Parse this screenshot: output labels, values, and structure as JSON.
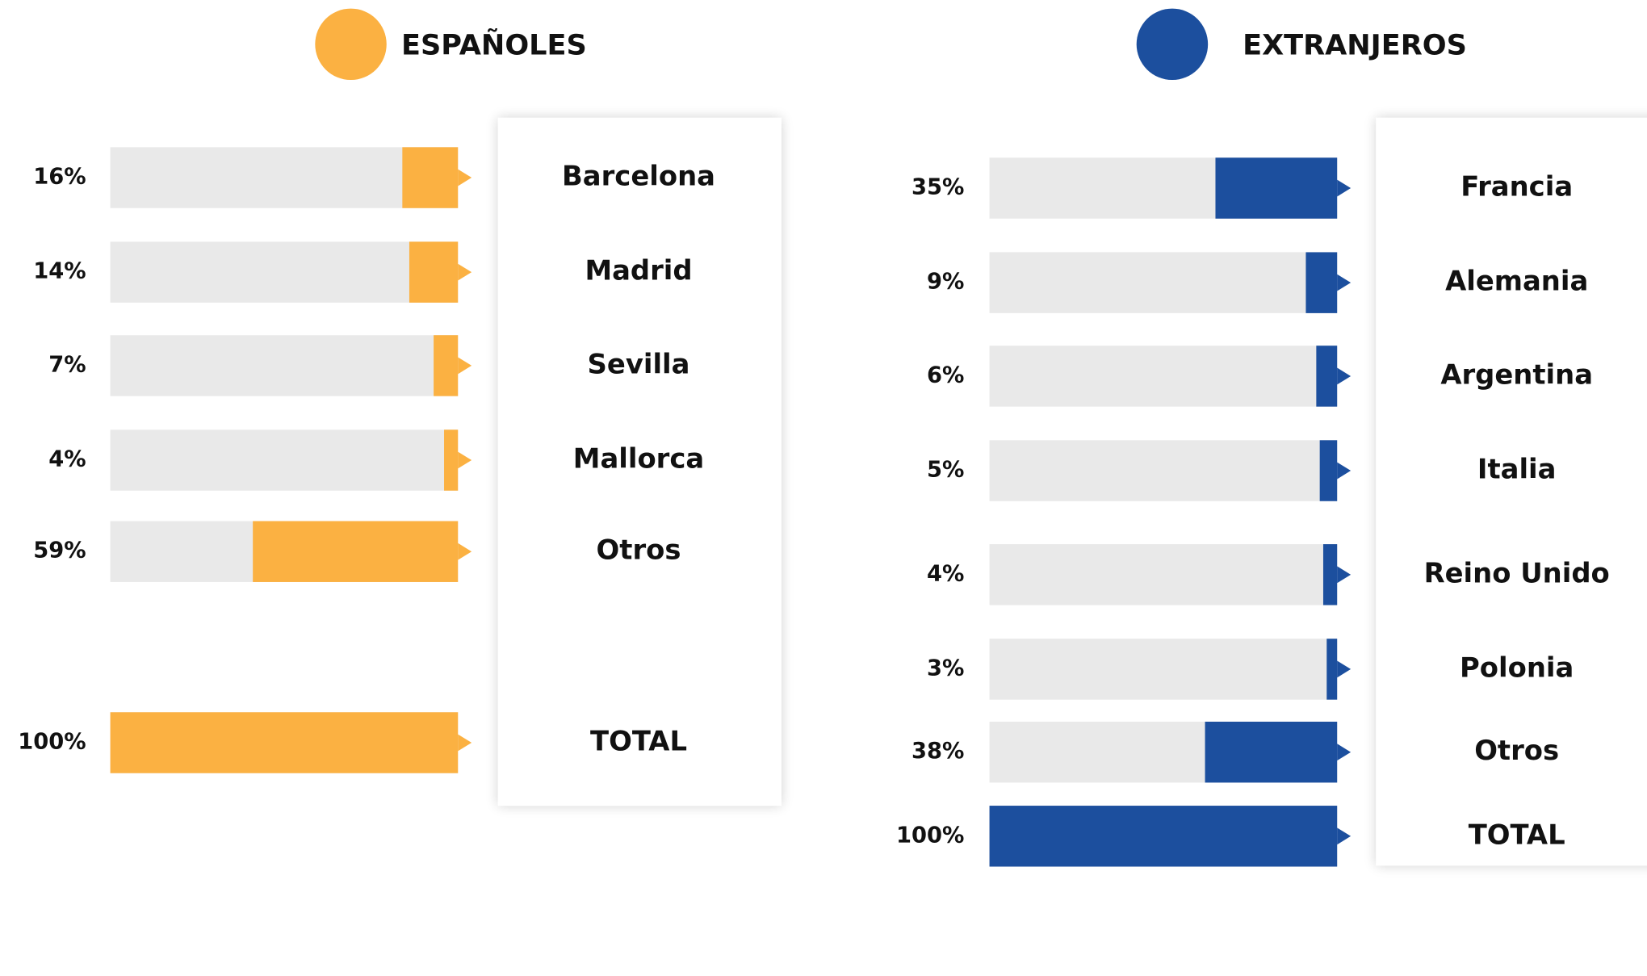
{
  "chart_data": [
    {
      "type": "bar",
      "title": "ESPAÑOLES",
      "color": "#FBB142",
      "track_color": "#E9E9E9",
      "categories": [
        "Barcelona",
        "Madrid",
        "Sevilla",
        "Mallorca",
        "Otros",
        "TOTAL"
      ],
      "values": [
        16,
        14,
        7,
        4,
        59,
        100
      ],
      "value_labels": [
        "16%",
        "14%",
        "7%",
        "4%",
        "59%",
        "100%"
      ],
      "xlim": [
        0,
        100
      ]
    },
    {
      "type": "bar",
      "title": "EXTRANJEROS",
      "color": "#1C4F9E",
      "track_color": "#E9E9E9",
      "categories": [
        "Francia",
        "Alemania",
        "Argentina",
        "Italia",
        "Reino Unido",
        "Polonia",
        "Otros",
        "TOTAL"
      ],
      "values": [
        35,
        9,
        6,
        5,
        4,
        3,
        38,
        100
      ],
      "value_labels": [
        "35%",
        "9%",
        "6%",
        "5%",
        "4%",
        "3%",
        "38%",
        "100%"
      ],
      "xlim": [
        0,
        100
      ]
    }
  ]
}
